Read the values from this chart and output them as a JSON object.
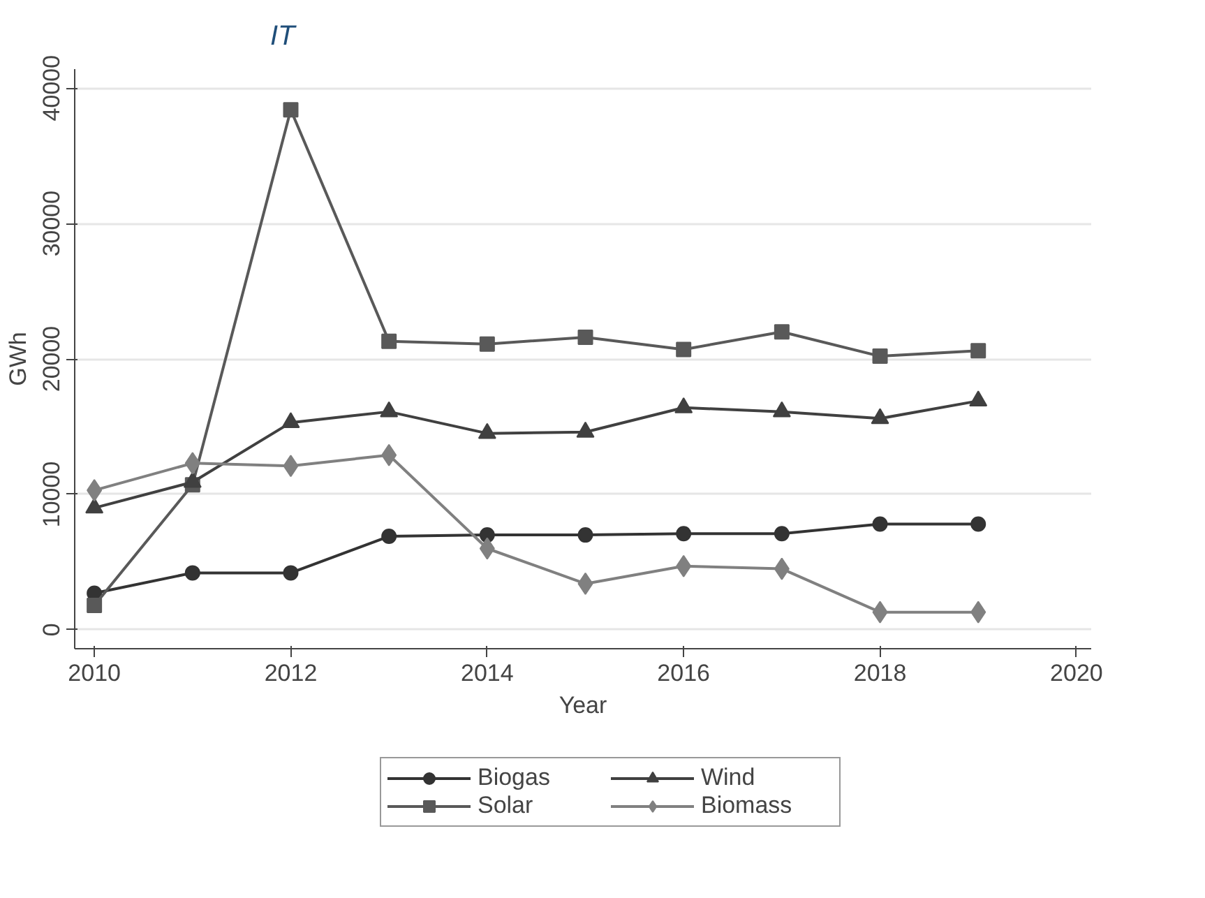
{
  "chart_data": {
    "type": "line",
    "title": "IT",
    "xlabel": "Year",
    "ylabel": "GWh",
    "x": [
      2010,
      2011,
      2012,
      2013,
      2014,
      2015,
      2016,
      2017,
      2018,
      2019
    ],
    "series": [
      {
        "name": "Biogas",
        "color": "#333333",
        "marker": "circle",
        "values": [
          2700,
          4200,
          4200,
          6900,
          7000,
          7000,
          7100,
          7100,
          7800,
          7800
        ]
      },
      {
        "name": "Solar",
        "color": "#595959",
        "marker": "square",
        "values": [
          1800,
          10700,
          38400,
          21300,
          21100,
          21600,
          20700,
          22000,
          20200,
          20600
        ]
      },
      {
        "name": "Wind",
        "color": "#404040",
        "marker": "triangle",
        "values": [
          9000,
          10900,
          15300,
          16100,
          14500,
          14600,
          16400,
          16100,
          15600,
          16900
        ]
      },
      {
        "name": "Biomass",
        "color": "#808080",
        "marker": "diamond",
        "values": [
          10300,
          12300,
          12100,
          12900,
          6000,
          3400,
          4700,
          4500,
          1300,
          1300
        ]
      }
    ],
    "xlim": [
      2009.8,
      2020.15
    ],
    "ylim": [
      -1400,
      41400
    ],
    "xticks": [
      2010,
      2012,
      2014,
      2016,
      2018,
      2020
    ],
    "yticks": [
      0,
      10000,
      20000,
      30000,
      40000
    ],
    "grid": "y",
    "legend": "bottom",
    "line_style": "solid"
  }
}
